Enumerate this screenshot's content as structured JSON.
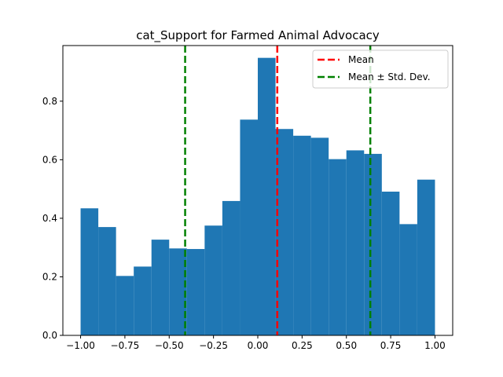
{
  "chart_data": {
    "type": "bar",
    "title": "cat_Support for Farmed Animal Advocacy",
    "xlabel": "",
    "ylabel": "",
    "xlim": [
      -1.1,
      1.1
    ],
    "ylim": [
      0,
      0.99
    ],
    "bins": [
      {
        "x0": -1.0,
        "x1": -0.9,
        "value": 0.434
      },
      {
        "x0": -0.9,
        "x1": -0.8,
        "value": 0.37
      },
      {
        "x0": -0.8,
        "x1": -0.7,
        "value": 0.203
      },
      {
        "x0": -0.7,
        "x1": -0.6,
        "value": 0.235
      },
      {
        "x0": -0.6,
        "x1": -0.5,
        "value": 0.327
      },
      {
        "x0": -0.5,
        "x1": -0.4,
        "value": 0.297
      },
      {
        "x0": -0.4,
        "x1": -0.3,
        "value": 0.295
      },
      {
        "x0": -0.3,
        "x1": -0.2,
        "value": 0.375
      },
      {
        "x0": -0.2,
        "x1": -0.1,
        "value": 0.459
      },
      {
        "x0": -0.1,
        "x1": 0.0,
        "value": 0.737
      },
      {
        "x0": 0.0,
        "x1": 0.1,
        "value": 0.948
      },
      {
        "x0": 0.1,
        "x1": 0.2,
        "value": 0.705
      },
      {
        "x0": 0.2,
        "x1": 0.3,
        "value": 0.682
      },
      {
        "x0": 0.3,
        "x1": 0.4,
        "value": 0.675
      },
      {
        "x0": 0.4,
        "x1": 0.5,
        "value": 0.602
      },
      {
        "x0": 0.5,
        "x1": 0.6,
        "value": 0.632
      },
      {
        "x0": 0.6,
        "x1": 0.7,
        "value": 0.62
      },
      {
        "x0": 0.7,
        "x1": 0.8,
        "value": 0.491
      },
      {
        "x0": 0.8,
        "x1": 0.9,
        "value": 0.38
      },
      {
        "x0": 0.9,
        "x1": 1.0,
        "value": 0.532
      }
    ],
    "mean": 0.11,
    "std_lines": [
      -0.41,
      0.635
    ],
    "xticks": [
      -1.0,
      -0.75,
      -0.5,
      -0.25,
      0.0,
      0.25,
      0.5,
      0.75,
      1.0
    ],
    "xtick_labels": [
      "−1.00",
      "−0.75",
      "−0.50",
      "−0.25",
      "0.00",
      "0.25",
      "0.50",
      "0.75",
      "1.00"
    ],
    "yticks": [
      0.0,
      0.2,
      0.4,
      0.6,
      0.8
    ],
    "ytick_labels": [
      "0.0",
      "0.2",
      "0.4",
      "0.6",
      "0.8"
    ],
    "legend": {
      "placement": "top-right",
      "entries": [
        {
          "label": "Mean",
          "color": "#ff0000",
          "style": "dashed"
        },
        {
          "label": "Mean ± Std. Dev.",
          "color": "#008000",
          "style": "dashed"
        }
      ]
    },
    "colors": {
      "bars": "#1f77b4",
      "mean": "#ff0000",
      "std": "#008000"
    },
    "grid": false
  }
}
